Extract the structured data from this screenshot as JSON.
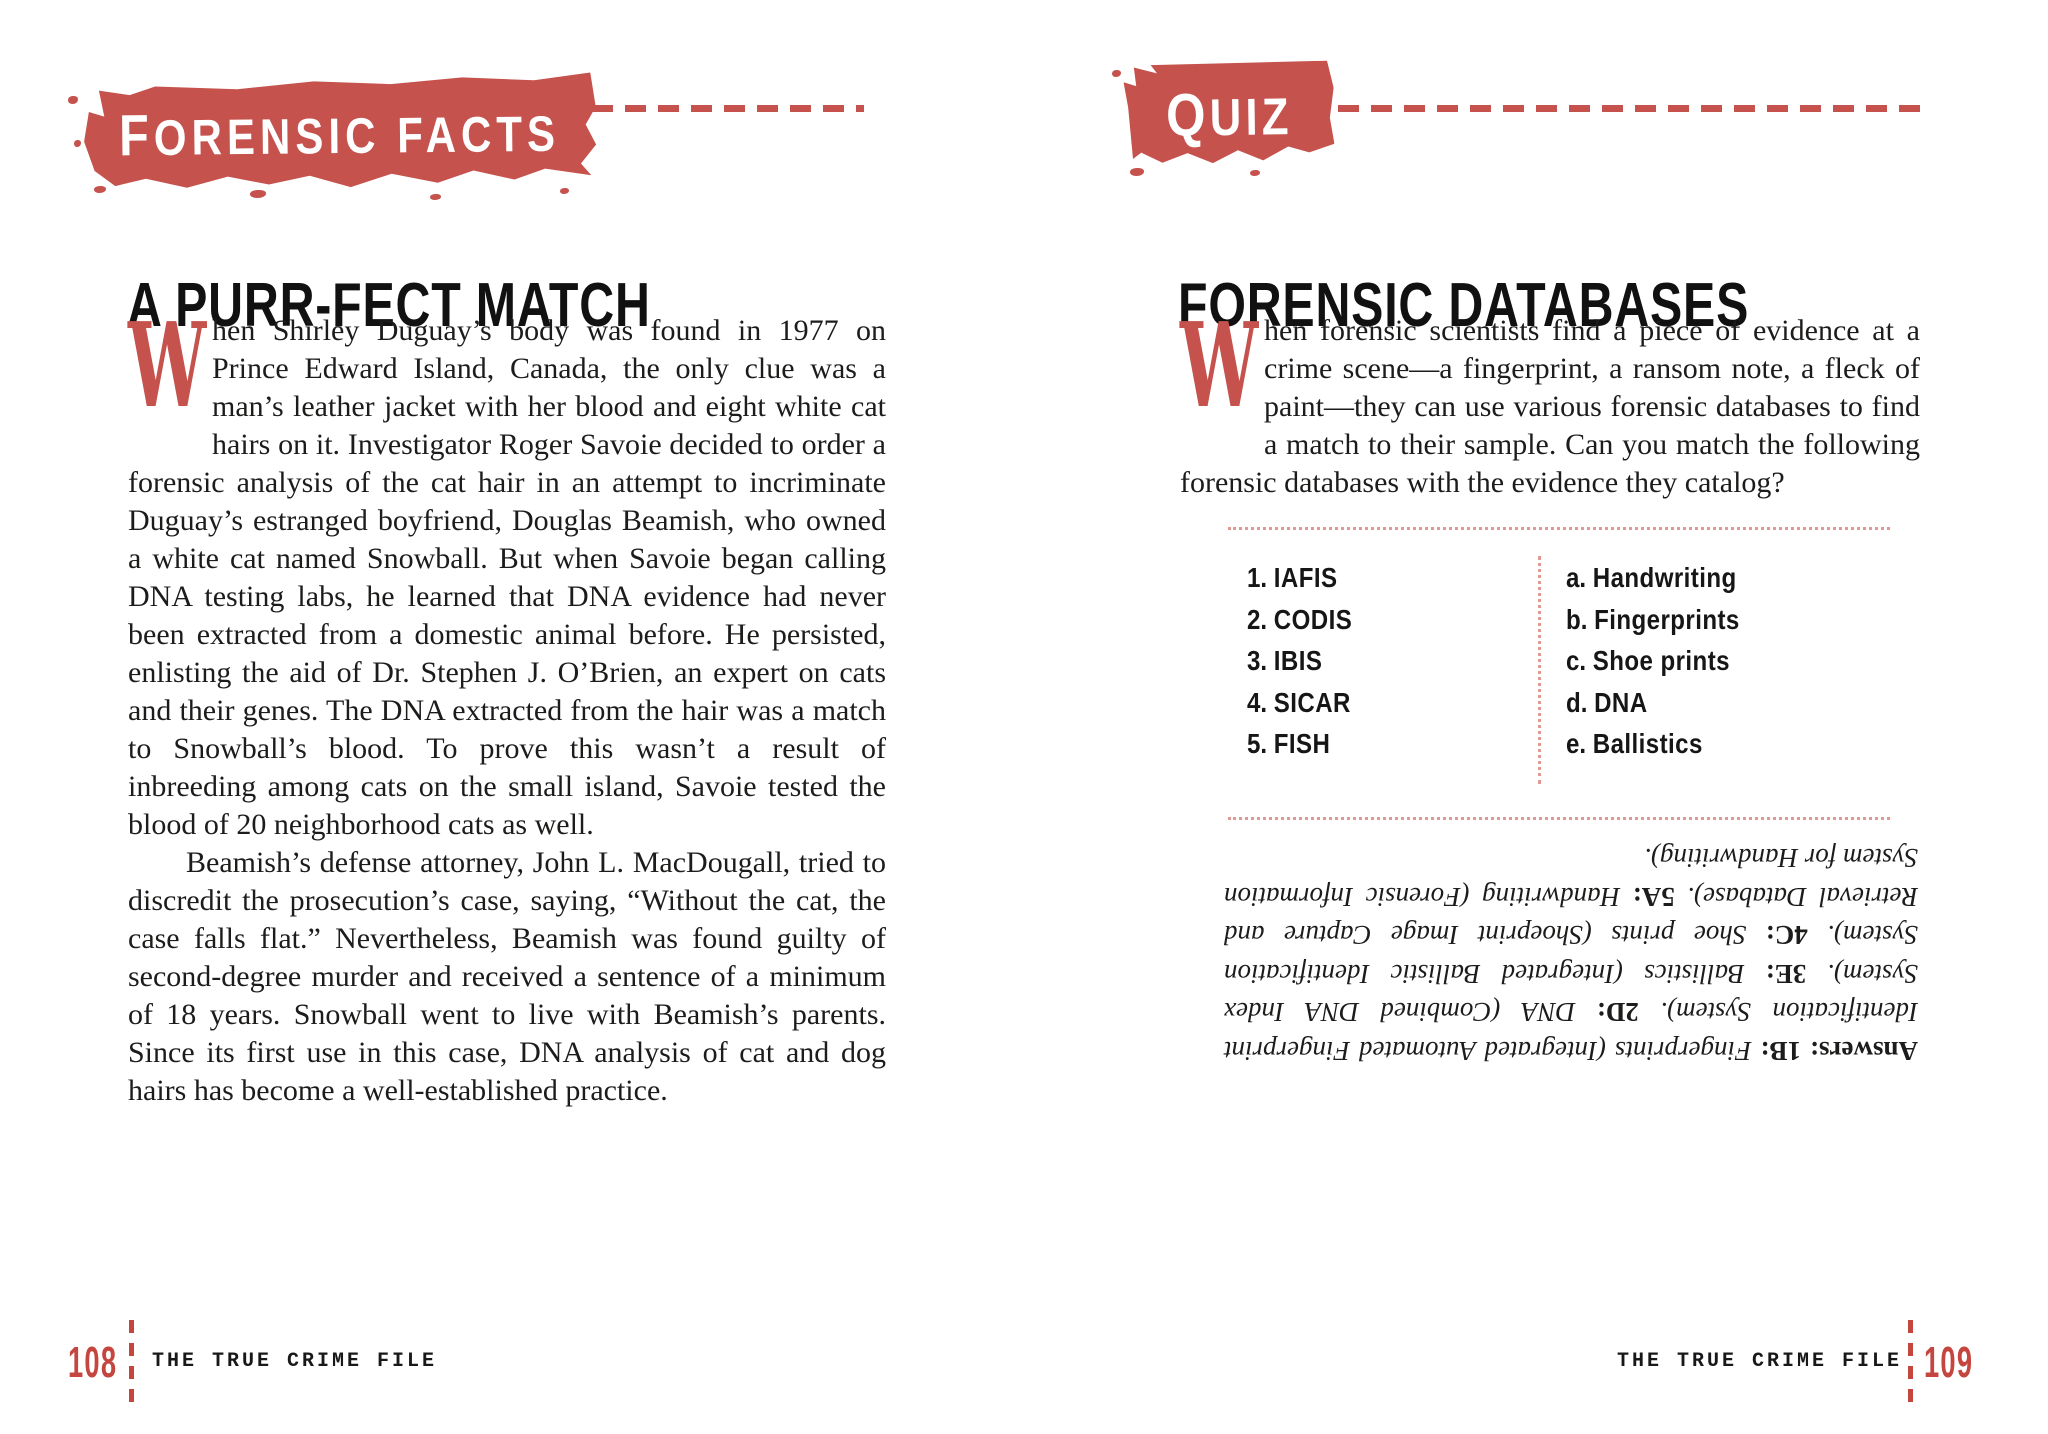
{
  "colors": {
    "accent_red": "#c6524d",
    "dotted_pink": "#e09a94",
    "text": "#1d1c1b"
  },
  "left_page": {
    "badge_label": "FORENSIC FACTS",
    "title": "A PURR-FECT MATCH",
    "drop_cap": "W",
    "paragraph1": "hen Shirley Duguay’s body was found in 1977 on Prince Edward Island, Canada, the only clue was a man’s leather jacket with her blood and eight white cat hairs on it. Investigator Roger Savoie decided to order a forensic analysis of the cat hair in an attempt to incriminate Duguay’s estranged boyfriend, Douglas Beamish, who owned a white cat named Snowball. But when Savoie began calling DNA testing labs, he learned that DNA evidence had never been extracted from a domestic animal before. He persisted, enlisting the aid of Dr. Stephen J. O’Brien, an expert on cats and their genes. The DNA extracted from the hair was a match to Snowball’s blood. To prove this wasn’t a result of inbreeding among cats on the small island, Savoie tested the blood of 20 neighborhood cats as well.",
    "paragraph2": "Beamish’s defense attorney, John L. MacDougall, tried to discredit the prosecution’s case, saying, “Without the cat, the case falls flat.” Nevertheless, Beamish was found guilty of second-degree murder and received a sentence of a minimum of 18 years. Snowball went to live with Beamish’s parents. Since its first use in this case, DNA analysis of cat and dog hairs has become a well-established practice.",
    "footer": {
      "page_number": "108",
      "book_title": "THE TRUE CRIME FILE"
    }
  },
  "right_page": {
    "badge_label": "QUIZ",
    "title": "FORENSIC DATABASES",
    "drop_cap": "W",
    "paragraph": "hen forensic scientists find a piece of evidence at a crime scene—a fingerprint, a ransom note, a fleck of paint—they can use various forensic databases to find a match to their sample. Can you match the following forensic databases with the evidence they catalog?",
    "quiz": {
      "numbered": [
        {
          "num": "1.",
          "label": "IAFIS"
        },
        {
          "num": "2.",
          "label": "CODIS"
        },
        {
          "num": "3.",
          "label": "IBIS"
        },
        {
          "num": "4.",
          "label": "SICAR"
        },
        {
          "num": "5.",
          "label": "FISH"
        }
      ],
      "lettered": [
        {
          "num": "a.",
          "label": "Handwriting"
        },
        {
          "num": "b.",
          "label": "Fingerprints"
        },
        {
          "num": "c.",
          "label": "Shoe prints"
        },
        {
          "num": "d.",
          "label": "DNA"
        },
        {
          "num": "e.",
          "label": "Ballistics"
        }
      ]
    },
    "answers_segments": [
      {
        "t": "Answers: 1B:",
        "b": true
      },
      {
        "t": " Fingerprints (Integrated Automated Fingerprint Identification System). ",
        "b": false
      },
      {
        "t": "2D:",
        "b": true
      },
      {
        "t": " DNA (Combined DNA Index System). ",
        "b": false
      },
      {
        "t": "3E:",
        "b": true
      },
      {
        "t": " Ballistics (Integrated Ballistic Identification System). ",
        "b": false
      },
      {
        "t": "4C:",
        "b": true
      },
      {
        "t": " Shoe prints (Shoeprint Image Capture and Retrieval Database). ",
        "b": false
      },
      {
        "t": "5A:",
        "b": true
      },
      {
        "t": " Handwriting (Forensic Information System for Handwriting).",
        "b": false
      }
    ],
    "footer": {
      "page_number": "109",
      "book_title": "THE TRUE CRIME FILE"
    }
  }
}
